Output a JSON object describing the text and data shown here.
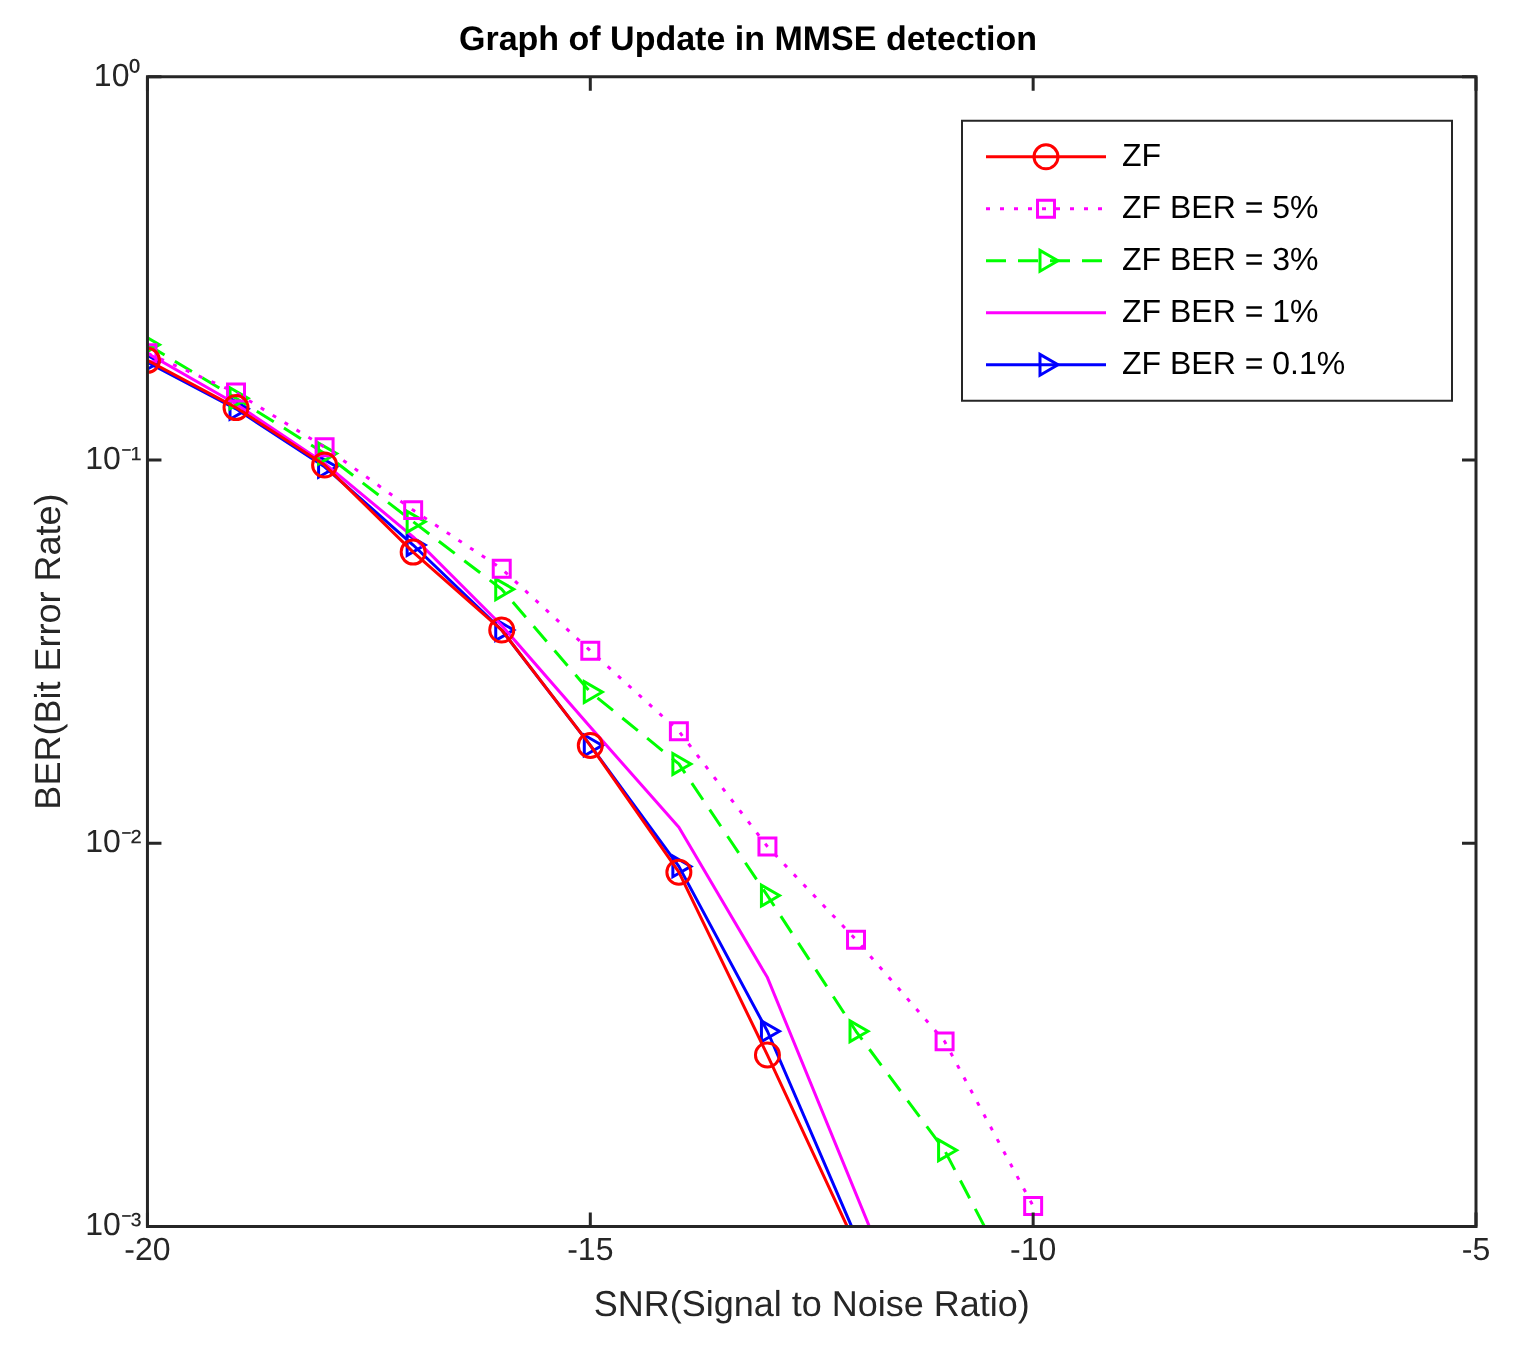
{
  "chart_data": {
    "type": "line",
    "title": "Graph of Update in MMSE detection",
    "xlabel": "SNR(Signal to Noise Ratio)",
    "ylabel": "BER(Bit Error Rate)",
    "log": "y",
    "grid": false,
    "legend": "top right",
    "xlim": [
      -20,
      -5
    ],
    "xticks": [
      -20,
      -15,
      -10,
      -5
    ],
    "ylim": [
      0.001,
      1
    ],
    "yticks": [
      {
        "value": 1,
        "label": "10⁰"
      },
      {
        "value": 0.1,
        "label": "10⁻¹"
      },
      {
        "value": 0.01,
        "label": "10⁻²"
      },
      {
        "value": 0.001,
        "label": "10⁻³"
      }
    ],
    "series": [
      {
        "name": "ZF",
        "color": "#ff0000",
        "marker": "circle",
        "line_style": "solid",
        "x": [
          -20,
          -19,
          -18,
          -17,
          -16,
          -15,
          -14,
          -13,
          -12.1
        ],
        "values": [
          0.182,
          0.137,
          0.097,
          0.0575,
          0.036,
          0.018,
          0.0084,
          0.0028,
          0.001
        ]
      },
      {
        "name": "ZF BER = 5%",
        "color": "#ff00ff",
        "marker": "square",
        "line_style": "dotted",
        "x": [
          -20,
          -19,
          -18,
          -17,
          -16,
          -15,
          -14,
          -13,
          -12,
          -11,
          -10
        ],
        "values": [
          0.19,
          0.15,
          0.108,
          0.074,
          0.052,
          0.0318,
          0.0196,
          0.0098,
          0.0056,
          0.00304,
          0.00113
        ]
      },
      {
        "name": "ZF BER = 3%",
        "color": "#00ff00",
        "marker": "triangle",
        "line_style": "dashed",
        "x": [
          -20,
          -19,
          -18,
          -17,
          -16,
          -15,
          -14,
          -13,
          -12,
          -11,
          -10.55
        ],
        "values": [
          0.2,
          0.145,
          0.104,
          0.069,
          0.046,
          0.0248,
          0.0161,
          0.0073,
          0.00323,
          0.00158,
          0.001
        ]
      },
      {
        "name": "ZF BER = 1%",
        "color": "#ff00ff",
        "marker": "none",
        "line_style": "solid",
        "x": [
          -20,
          -19,
          -18,
          -17,
          -16,
          -15,
          -14,
          -13,
          -11.85
        ],
        "values": [
          0.19,
          0.14,
          0.098,
          0.063,
          0.037,
          0.0201,
          0.011,
          0.00446,
          0.001
        ]
      },
      {
        "name": "ZF BER = 0.1%",
        "color": "#0000ff",
        "marker": "triangle",
        "line_style": "solid",
        "x": [
          -20,
          -19,
          -18,
          -17,
          -16,
          -15,
          -14,
          -13,
          -12.05
        ],
        "values": [
          0.18,
          0.136,
          0.096,
          0.06,
          0.036,
          0.018,
          0.0087,
          0.00323,
          0.001
        ]
      }
    ]
  }
}
